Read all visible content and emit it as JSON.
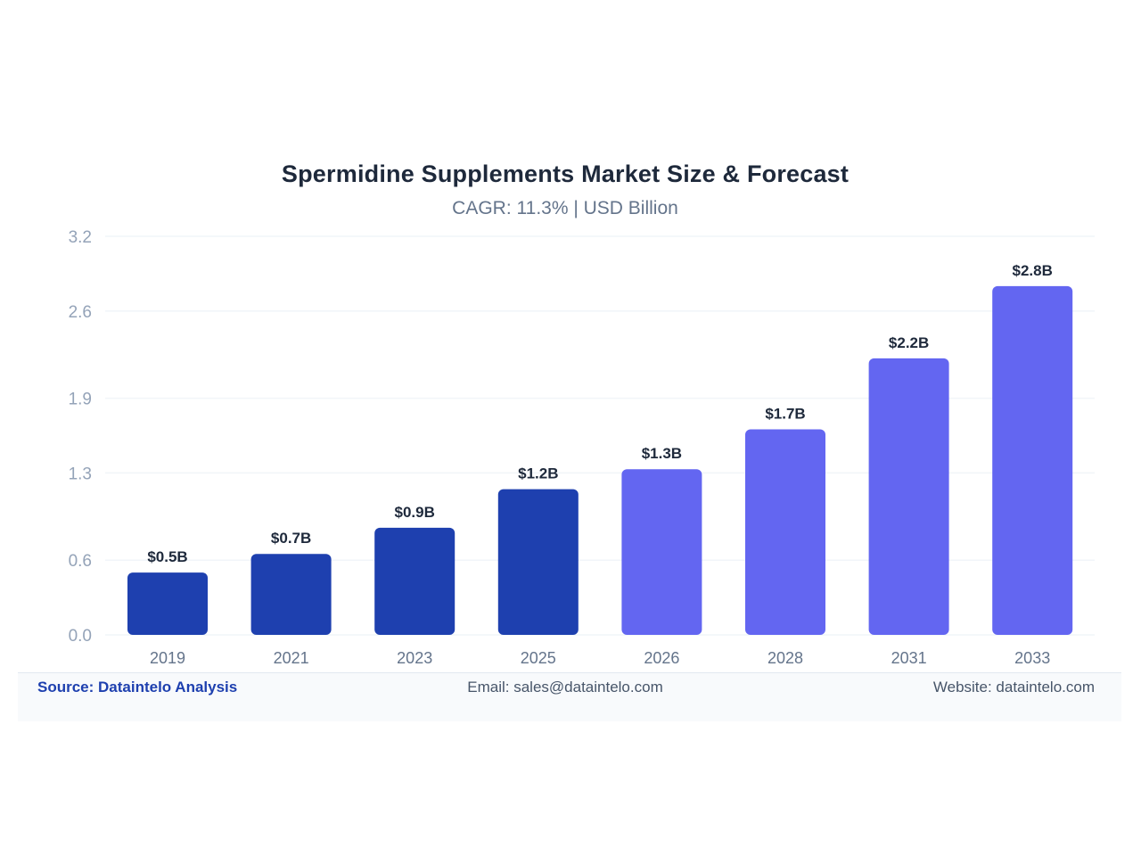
{
  "header": {
    "title": "Spermidine Supplements Market Size & Forecast",
    "subtitle": "CAGR: 11.3% | USD Billion"
  },
  "footer": {
    "source": "Source: Dataintelo Analysis",
    "email": "Email: sales@dataintelo.com",
    "website": "Website: dataintelo.com"
  },
  "colors": {
    "historical": "#1e40af",
    "forecast": "#6366f1",
    "gridline": "#f1f5f9",
    "tick_label": "#94a3b8",
    "category_label": "#64748b",
    "data_label": "#1e293b"
  },
  "chart_data": {
    "type": "bar",
    "title": "Spermidine Supplements Market Size & Forecast",
    "subtitle": "CAGR: 11.3% | USD Billion",
    "xlabel": "",
    "ylabel": "",
    "categories": [
      "2019",
      "2021",
      "2023",
      "2025",
      "2026",
      "2028",
      "2031",
      "2033"
    ],
    "values": [
      0.5,
      0.65,
      0.86,
      1.17,
      1.33,
      1.65,
      2.22,
      2.8
    ],
    "data_labels": [
      "$0.5B",
      "$0.7B",
      "$0.9B",
      "$1.2B",
      "$1.3B",
      "$1.7B",
      "$2.2B",
      "$2.8B"
    ],
    "bar_group": [
      "historical",
      "historical",
      "historical",
      "historical",
      "forecast",
      "forecast",
      "forecast",
      "forecast"
    ],
    "yticks": [
      0.0,
      0.6,
      1.3,
      1.9,
      2.6,
      3.2
    ],
    "ytick_labels": [
      "0.0",
      "0.6",
      "1.3",
      "1.9",
      "2.6",
      "3.2"
    ],
    "ylim": [
      0,
      3.2
    ],
    "grid": true,
    "legend": "none"
  }
}
